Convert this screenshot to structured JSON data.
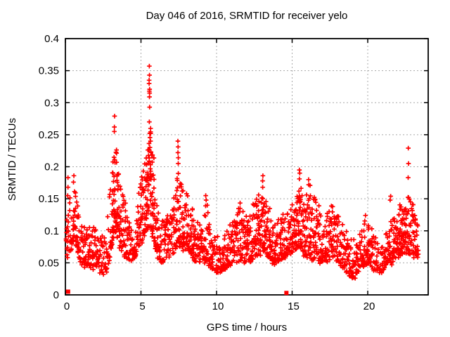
{
  "window": {
    "background": "#ffffff"
  },
  "chart_data": {
    "type": "scatter",
    "title": "Day 046 of 2016, SRMTID for receiver yelo",
    "xlabel": "GPS time / hours",
    "ylabel": "SRMTID / TECUs",
    "xlim": [
      0,
      24
    ],
    "ylim": [
      0,
      0.4
    ],
    "xticks": [
      0,
      5,
      10,
      15,
      20
    ],
    "yticks": [
      0,
      0.05,
      0.1,
      0.15,
      0.2,
      0.25,
      0.3,
      0.35,
      0.4
    ],
    "x_tick_labels": [
      "0",
      "5",
      "10",
      "15",
      "20"
    ],
    "y_tick_labels": [
      "0",
      "0.05",
      "0.1",
      "0.15",
      "0.2",
      "0.25",
      "0.3",
      "0.35",
      "0.4"
    ],
    "grid": {
      "show": true,
      "color": "#a8a8a8",
      "dash": "2,3"
    },
    "legend": "none",
    "marker": {
      "shape": "plus",
      "color": "#ff0000",
      "size": 6.6,
      "stroke_width": 1.7
    },
    "square_marker": {
      "shape": "filled-square",
      "color": "#ff0000",
      "size": 6
    },
    "square_points": [
      [
        0.18,
        0.005
      ],
      [
        14.62,
        0.003
      ]
    ],
    "seed": 1337,
    "scatter_envelope": {
      "description": "piecewise-linear envelope of the dense scatter band: [hour, y_low_TECU, y_high_TECU, points_per_bin]",
      "bins": 0.05,
      "tmin": 0.04,
      "tmax": 23.33,
      "control_points": [
        [
          0.05,
          0.06,
          0.16,
          5
        ],
        [
          0.3,
          0.055,
          0.145,
          3.5
        ],
        [
          0.6,
          0.09,
          0.17,
          5
        ],
        [
          1.0,
          0.045,
          0.105,
          4
        ],
        [
          1.5,
          0.045,
          0.105,
          4
        ],
        [
          2.0,
          0.04,
          0.1,
          3.5
        ],
        [
          2.5,
          0.035,
          0.09,
          3
        ],
        [
          2.8,
          0.04,
          0.12,
          3
        ],
        [
          3.1,
          0.08,
          0.2,
          6
        ],
        [
          3.35,
          0.1,
          0.225,
          7
        ],
        [
          3.6,
          0.07,
          0.16,
          5
        ],
        [
          4.0,
          0.06,
          0.135,
          4
        ],
        [
          4.4,
          0.05,
          0.1,
          3
        ],
        [
          4.8,
          0.07,
          0.15,
          4
        ],
        [
          5.1,
          0.085,
          0.185,
          5
        ],
        [
          5.35,
          0.1,
          0.22,
          7
        ],
        [
          5.6,
          0.11,
          0.255,
          8
        ],
        [
          5.85,
          0.085,
          0.21,
          6
        ],
        [
          6.1,
          0.06,
          0.13,
          4
        ],
        [
          6.4,
          0.05,
          0.11,
          3.5
        ],
        [
          6.8,
          0.06,
          0.12,
          4
        ],
        [
          7.1,
          0.065,
          0.14,
          4
        ],
        [
          7.45,
          0.08,
          0.185,
          6
        ],
        [
          7.8,
          0.07,
          0.16,
          5
        ],
        [
          8.2,
          0.07,
          0.14,
          5
        ],
        [
          8.6,
          0.05,
          0.115,
          4
        ],
        [
          9.0,
          0.05,
          0.11,
          4
        ],
        [
          9.3,
          0.055,
          0.14,
          4
        ],
        [
          9.7,
          0.04,
          0.09,
          3.5
        ],
        [
          10.2,
          0.035,
          0.085,
          3.5
        ],
        [
          10.7,
          0.045,
          0.1,
          4
        ],
        [
          11.2,
          0.05,
          0.11,
          4
        ],
        [
          11.6,
          0.055,
          0.14,
          4
        ],
        [
          12.0,
          0.05,
          0.115,
          4
        ],
        [
          12.5,
          0.06,
          0.14,
          4.5
        ],
        [
          12.9,
          0.065,
          0.155,
          5
        ],
        [
          13.2,
          0.07,
          0.15,
          5
        ],
        [
          13.6,
          0.05,
          0.12,
          4
        ],
        [
          14.0,
          0.05,
          0.11,
          4
        ],
        [
          14.4,
          0.055,
          0.12,
          4
        ],
        [
          14.8,
          0.06,
          0.135,
          4.5
        ],
        [
          15.2,
          0.07,
          0.16,
          5
        ],
        [
          15.5,
          0.08,
          0.175,
          6
        ],
        [
          15.8,
          0.06,
          0.15,
          5
        ],
        [
          16.1,
          0.06,
          0.165,
          5
        ],
        [
          16.5,
          0.055,
          0.155,
          4.5
        ],
        [
          16.9,
          0.05,
          0.12,
          4
        ],
        [
          17.3,
          0.055,
          0.12,
          4
        ],
        [
          17.7,
          0.06,
          0.14,
          4.5
        ],
        [
          18.1,
          0.05,
          0.12,
          4
        ],
        [
          18.5,
          0.04,
          0.095,
          3.5
        ],
        [
          18.9,
          0.025,
          0.08,
          3
        ],
        [
          19.3,
          0.03,
          0.085,
          3.5
        ],
        [
          19.7,
          0.045,
          0.105,
          4
        ],
        [
          20.0,
          0.05,
          0.125,
          4.5
        ],
        [
          20.4,
          0.04,
          0.09,
          3.5
        ],
        [
          20.8,
          0.035,
          0.08,
          3
        ],
        [
          21.2,
          0.045,
          0.1,
          4
        ],
        [
          21.6,
          0.05,
          0.115,
          4.5
        ],
        [
          22.0,
          0.06,
          0.13,
          5
        ],
        [
          22.4,
          0.065,
          0.145,
          5.5
        ],
        [
          22.75,
          0.065,
          0.145,
          5
        ],
        [
          23.1,
          0.06,
          0.135,
          4.5
        ],
        [
          23.33,
          0.06,
          0.11,
          4
        ]
      ]
    },
    "outlier_columns": [
      {
        "x": 0.16,
        "ys": [
          0.155,
          0.168,
          0.183
        ]
      },
      {
        "x": 0.55,
        "ys": [
          0.176,
          0.186
        ]
      },
      {
        "x": 3.25,
        "ys": [
          0.211,
          0.255,
          0.262,
          0.279
        ]
      },
      {
        "x": 5.56,
        "ys": [
          0.27,
          0.293,
          0.309,
          0.315,
          0.318,
          0.321,
          0.33,
          0.335,
          0.343,
          0.357
        ]
      },
      {
        "x": 5.63,
        "ys": [
          0.24,
          0.252,
          0.26
        ]
      },
      {
        "x": 7.45,
        "ys": [
          0.205,
          0.214,
          0.222,
          0.231,
          0.24
        ]
      },
      {
        "x": 9.3,
        "ys": [
          0.148,
          0.155
        ]
      },
      {
        "x": 13.05,
        "ys": [
          0.168,
          0.178,
          0.186
        ]
      },
      {
        "x": 15.5,
        "ys": [
          0.181,
          0.19,
          0.195
        ]
      },
      {
        "x": 16.1,
        "ys": [
          0.172,
          0.18
        ]
      },
      {
        "x": 21.5,
        "ys": [
          0.148,
          0.154
        ]
      },
      {
        "x": 22.68,
        "ys": [
          0.131,
          0.152,
          0.183,
          0.205,
          0.229
        ]
      }
    ]
  }
}
